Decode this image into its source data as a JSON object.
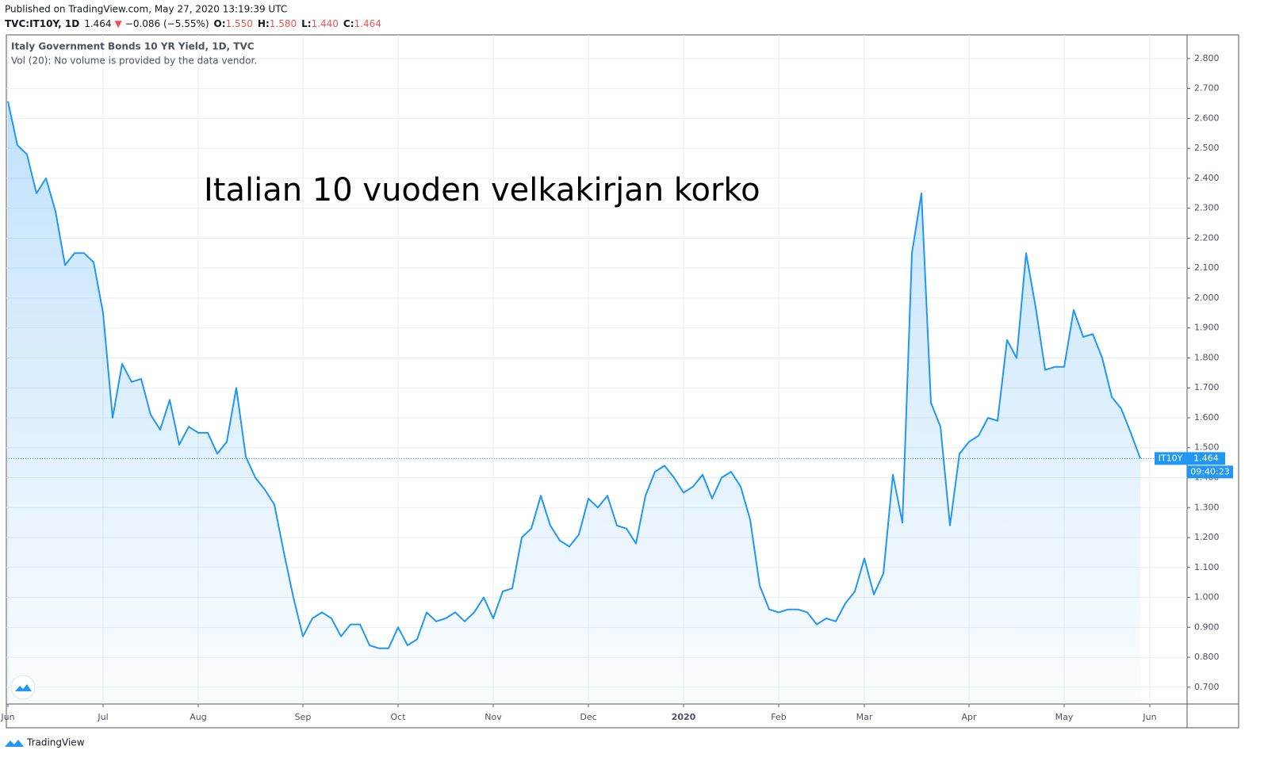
{
  "header": {
    "published": "Published on TradingView.com, May 27, 2020 13:19:39 UTC",
    "symbol": "TVC:IT10Y, 1D",
    "last": "1.464",
    "arrow": "▼",
    "change": "−0.086 (−5.55%)",
    "open_label": "O:",
    "open": "1.550",
    "high_label": "H:",
    "high": "1.580",
    "low_label": "L:",
    "low": "1.440",
    "close_label": "C:",
    "close": "1.464"
  },
  "legend": {
    "title": "Italy Government Bonds 10 YR Yield, 1D, TVC",
    "volume": "Vol (20): No volume is provided by the data vendor."
  },
  "footer": {
    "brand": "TradingView"
  },
  "chart_data": {
    "type": "line",
    "annotation": "Italian 10 vuoden velkakirjan korko",
    "categories": [
      "Jun",
      null,
      null,
      null,
      null,
      null,
      null,
      null,
      null,
      null,
      "Jul",
      null,
      null,
      null,
      null,
      null,
      null,
      null,
      null,
      null,
      "Aug",
      null,
      null,
      null,
      null,
      null,
      null,
      null,
      null,
      null,
      null,
      "Sep",
      null,
      null,
      null,
      null,
      null,
      null,
      null,
      null,
      null,
      "Oct",
      null,
      null,
      null,
      null,
      null,
      null,
      null,
      null,
      null,
      "Nov",
      null,
      null,
      null,
      null,
      null,
      null,
      null,
      null,
      null,
      "Dec",
      null,
      null,
      null,
      null,
      null,
      null,
      null,
      null,
      null,
      "2020",
      null,
      null,
      null,
      null,
      null,
      null,
      null,
      null,
      null,
      "Feb",
      null,
      null,
      null,
      null,
      null,
      null,
      null,
      null,
      "Mar",
      null,
      null,
      null,
      null,
      null,
      null,
      null,
      null,
      null,
      null,
      "Apr",
      null,
      null,
      null,
      null,
      null,
      null,
      null,
      null,
      null,
      "May",
      null,
      null,
      null,
      null,
      null,
      null,
      null,
      null,
      "Jun"
    ],
    "series": [
      {
        "name": "IT10Y",
        "color": "#2196f3",
        "values": [
          2.657,
          2.51,
          2.48,
          2.35,
          2.4,
          2.29,
          2.11,
          2.15,
          2.15,
          2.12,
          1.95,
          1.6,
          1.78,
          1.72,
          1.73,
          1.61,
          1.56,
          1.66,
          1.51,
          1.57,
          1.55,
          1.55,
          1.48,
          1.52,
          1.7,
          1.47,
          1.4,
          1.36,
          1.31,
          1.15,
          1.0,
          0.87,
          0.93,
          0.95,
          0.93,
          0.87,
          0.91,
          0.91,
          0.84,
          0.83,
          0.83,
          0.9,
          0.84,
          0.86,
          0.95,
          0.92,
          0.93,
          0.95,
          0.92,
          0.95,
          1.0,
          0.93,
          1.02,
          1.03,
          1.2,
          1.23,
          1.34,
          1.24,
          1.19,
          1.17,
          1.21,
          1.33,
          1.3,
          1.34,
          1.24,
          1.23,
          1.18,
          1.34,
          1.42,
          1.44,
          1.4,
          1.35,
          1.37,
          1.41,
          1.33,
          1.4,
          1.42,
          1.37,
          1.26,
          1.04,
          0.96,
          0.95,
          0.96,
          0.96,
          0.95,
          0.91,
          0.93,
          0.92,
          0.98,
          1.02,
          1.13,
          1.01,
          1.08,
          1.41,
          1.25,
          2.15,
          2.35,
          1.65,
          1.57,
          1.24,
          1.48,
          1.52,
          1.54,
          1.6,
          1.59,
          1.86,
          1.8,
          2.15,
          1.97,
          1.76,
          1.77,
          1.77,
          1.96,
          1.87,
          1.88,
          1.8,
          1.67,
          1.63,
          1.55,
          1.464,
          null
        ]
      }
    ],
    "last_value": 1.464,
    "countdown": "09:40:23",
    "ylim": [
      0.644,
      2.879
    ],
    "yticks": [
      {
        "value": 0.7,
        "label": "0.700"
      },
      {
        "value": 0.8,
        "label": "0.800"
      },
      {
        "value": 0.9,
        "label": "0.900"
      },
      {
        "value": 1.0,
        "label": "1.000"
      },
      {
        "value": 1.1,
        "label": "1.100"
      },
      {
        "value": 1.2,
        "label": "1.200"
      },
      {
        "value": 1.3,
        "label": "1.300"
      },
      {
        "value": 1.4,
        "label": "1.400"
      },
      {
        "value": 1.5,
        "label": "1.500"
      },
      {
        "value": 1.6,
        "label": "1.600"
      },
      {
        "value": 1.7,
        "label": "1.700"
      },
      {
        "value": 1.8,
        "label": "1.800"
      },
      {
        "value": 1.9,
        "label": "1.900"
      },
      {
        "value": 2.0,
        "label": "2.000"
      },
      {
        "value": 2.1,
        "label": "2.100"
      },
      {
        "value": 2.2,
        "label": "2.200"
      },
      {
        "value": 2.3,
        "label": "2.300"
      },
      {
        "value": 2.4,
        "label": "2.400"
      },
      {
        "value": 2.5,
        "label": "2.500"
      },
      {
        "value": 2.6,
        "label": "2.600"
      },
      {
        "value": 2.7,
        "label": "2.700"
      },
      {
        "value": 2.8,
        "label": "2.800"
      }
    ],
    "grid": true
  }
}
